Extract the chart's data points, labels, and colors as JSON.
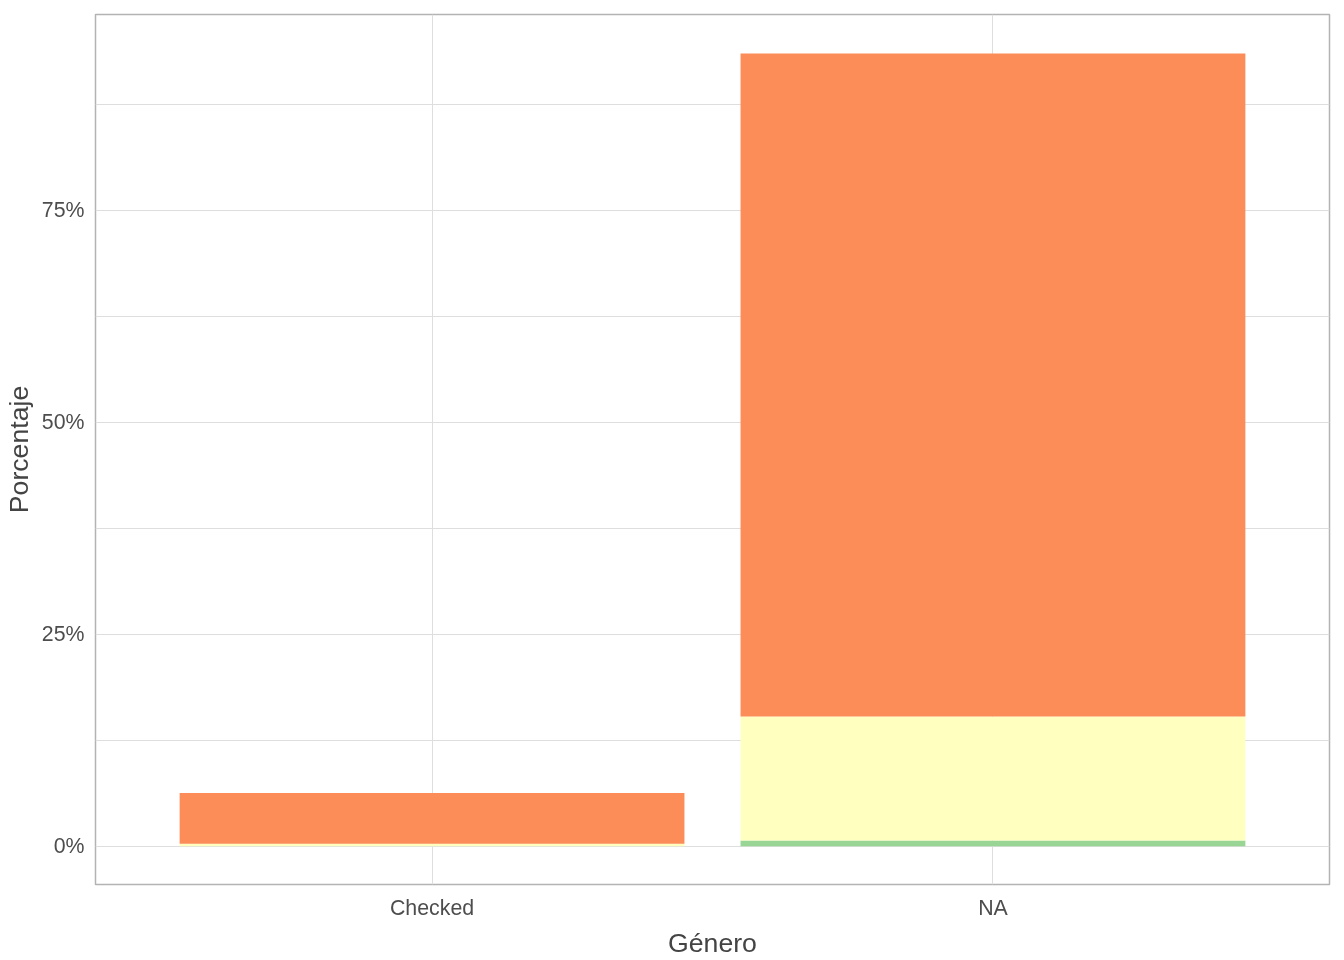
{
  "chart_data": {
    "type": "bar",
    "stacked": true,
    "xlabel": "Género",
    "ylabel": "Porcentaje",
    "categories": [
      "Checked",
      "NA"
    ],
    "series": [
      {
        "color": "#99d594",
        "values": [
          0,
          0.7
        ]
      },
      {
        "color": "#ffffbf",
        "values": [
          0.3,
          14.6
        ]
      },
      {
        "color": "#fc8d59",
        "values": [
          6.0,
          78.2
        ]
      }
    ],
    "ylim": [
      -4.5,
      98.1
    ],
    "yticks": [
      {
        "value": 0,
        "label": "0%"
      },
      {
        "value": 12.5,
        "label": null
      },
      {
        "value": 25,
        "label": "25%"
      },
      {
        "value": 37.5,
        "label": null
      },
      {
        "value": 50,
        "label": "50%"
      },
      {
        "value": 62.5,
        "label": null
      },
      {
        "value": 75,
        "label": "75%"
      },
      {
        "value": 87.5,
        "label": null
      }
    ],
    "grid": true
  }
}
